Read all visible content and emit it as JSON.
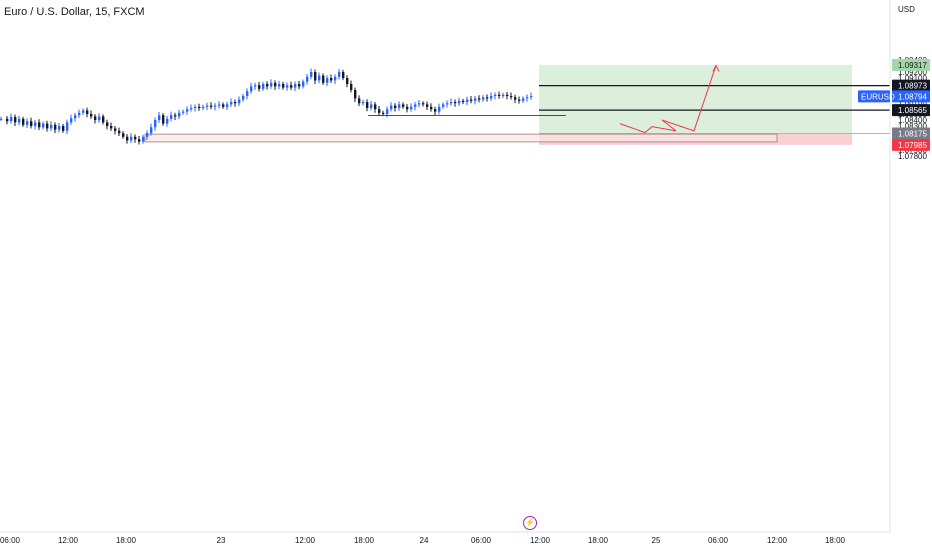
{
  "header": {
    "title": "Euro / U.S. Dollar, 15, FXCM",
    "currency": "USD"
  },
  "price_axis": {
    "ticks": [
      "1.09400",
      "1.09200",
      "1.09100",
      "1.09000",
      "1.08900",
      "1.08700",
      "1.08600",
      "1.08500",
      "1.08400",
      "1.08300",
      "1.08200",
      "1.08100",
      "1.07900",
      "1.07800"
    ],
    "tick_values": [
      1.094,
      1.092,
      1.091,
      1.09,
      1.089,
      1.087,
      1.086,
      1.085,
      1.084,
      1.083,
      1.082,
      1.081,
      1.079,
      1.078
    ]
  },
  "time_axis": {
    "labels": [
      "06:00",
      "12:00",
      "18:00",
      "23",
      "12:00",
      "18:00",
      "24",
      "06:00",
      "12:00",
      "18:00",
      "25",
      "06:00",
      "12:00",
      "18:00"
    ]
  },
  "price_tags": [
    {
      "text": "1.09317",
      "value": 1.09317,
      "bg": "#a5d6a7",
      "fg": "#131722"
    },
    {
      "text": "1.08973",
      "value": 1.08973,
      "bg": "#131722",
      "fg": "#ffffff"
    },
    {
      "text": "1.08794",
      "value": 1.08794,
      "bg": "#2962ff",
      "fg": "#ffffff",
      "symbol": "EURUSD"
    },
    {
      "text": "1.08565",
      "value": 1.08565,
      "bg": "#131722",
      "fg": "#ffffff"
    },
    {
      "text": "1.08175",
      "value": 1.08175,
      "bg": "#787b86",
      "fg": "#ffffff"
    },
    {
      "text": "1.07985",
      "value": 1.07985,
      "bg": "#f23645",
      "fg": "#ffffff"
    }
  ],
  "position": {
    "target": 1.09317,
    "entry": 1.08175,
    "stop": 1.07985,
    "profit_color": "#dcefdc",
    "loss_color": "#f9d0d2"
  },
  "demand_zone": {
    "top": 1.08165,
    "bottom": 1.08035,
    "color": "#fbe5e6"
  },
  "levels": [
    1.08973,
    1.08565
  ],
  "support_line_level": 1.08475,
  "colors": {
    "up": "#2962ff",
    "down": "#131722",
    "projection": "#f23645"
  },
  "chart_data": {
    "type": "candlestick",
    "title": "Euro / U.S. Dollar, 15, FXCM",
    "symbol": "EURUSD",
    "ylim": [
      1.0775,
      1.0955
    ],
    "last_price": 1.08794,
    "close_path": [
      [
        0,
        1.0842
      ],
      [
        6,
        1.0838
      ],
      [
        10,
        1.0845
      ],
      [
        14,
        1.0836
      ],
      [
        18,
        1.0842
      ],
      [
        22,
        1.0832
      ],
      [
        26,
        1.0838
      ],
      [
        30,
        1.083
      ],
      [
        34,
        1.0836
      ],
      [
        38,
        1.0828
      ],
      [
        42,
        1.0834
      ],
      [
        46,
        1.0826
      ],
      [
        50,
        1.0832
      ],
      [
        54,
        1.0824
      ],
      [
        58,
        1.083
      ],
      [
        62,
        1.0822
      ],
      [
        66,
        1.0836
      ],
      [
        70,
        1.0843
      ],
      [
        74,
        1.0848
      ],
      [
        78,
        1.0852
      ],
      [
        82,
        1.0856
      ],
      [
        86,
        1.085
      ],
      [
        90,
        1.0846
      ],
      [
        94,
        1.084
      ],
      [
        98,
        1.0846
      ],
      [
        102,
        1.0836
      ],
      [
        106,
        1.083
      ],
      [
        110,
        1.0826
      ],
      [
        114,
        1.0822
      ],
      [
        118,
        1.0818
      ],
      [
        122,
        1.0812
      ],
      [
        126,
        1.0806
      ],
      [
        130,
        1.0812
      ],
      [
        134,
        1.0808
      ],
      [
        138,
        1.0804
      ],
      [
        142,
        1.0812
      ],
      [
        146,
        1.0818
      ],
      [
        150,
        1.0828
      ],
      [
        154,
        1.084
      ],
      [
        158,
        1.0848
      ],
      [
        162,
        1.0834
      ],
      [
        166,
        1.0842
      ],
      [
        170,
        1.0848
      ],
      [
        174,
        1.0846
      ],
      [
        178,
        1.0852
      ],
      [
        182,
        1.0854
      ],
      [
        186,
        1.0858
      ],
      [
        190,
        1.086
      ],
      [
        194,
        1.0862
      ],
      [
        198,
        1.086
      ],
      [
        202,
        1.0862
      ],
      [
        206,
        1.0864
      ],
      [
        210,
        1.0862
      ],
      [
        214,
        1.0864
      ],
      [
        218,
        1.0866
      ],
      [
        222,
        1.0862
      ],
      [
        226,
        1.0866
      ],
      [
        230,
        1.087
      ],
      [
        234,
        1.0868
      ],
      [
        238,
        1.0874
      ],
      [
        242,
        1.088
      ],
      [
        246,
        1.0888
      ],
      [
        250,
        1.0896
      ],
      [
        254,
        1.0898
      ],
      [
        258,
        1.0892
      ],
      [
        262,
        1.09
      ],
      [
        266,
        1.0896
      ],
      [
        270,
        1.0902
      ],
      [
        274,
        1.0896
      ],
      [
        278,
        1.09
      ],
      [
        282,
        1.0894
      ],
      [
        286,
        1.0898
      ],
      [
        290,
        1.0894
      ],
      [
        294,
        1.09
      ],
      [
        298,
        1.0896
      ],
      [
        302,
        1.0904
      ],
      [
        306,
        1.0912
      ],
      [
        310,
        1.092
      ],
      [
        314,
        1.0906
      ],
      [
        318,
        1.0914
      ],
      [
        322,
        1.0902
      ],
      [
        326,
        1.091
      ],
      [
        330,
        1.0906
      ],
      [
        334,
        1.0912
      ],
      [
        338,
        1.092
      ],
      [
        342,
        1.091
      ],
      [
        346,
        1.09
      ],
      [
        350,
        1.089
      ],
      [
        354,
        1.0876
      ],
      [
        358,
        1.0868
      ],
      [
        362,
        1.087
      ],
      [
        366,
        1.086
      ],
      [
        370,
        1.0866
      ],
      [
        374,
        1.0858
      ],
      [
        378,
        1.0852
      ],
      [
        382,
        1.085
      ],
      [
        386,
        1.0858
      ],
      [
        390,
        1.0864
      ],
      [
        394,
        1.086
      ],
      [
        398,
        1.0866
      ],
      [
        402,
        1.0862
      ],
      [
        406,
        1.0858
      ],
      [
        410,
        1.0862
      ],
      [
        414,
        1.0866
      ],
      [
        418,
        1.0868
      ],
      [
        422,
        1.0866
      ],
      [
        426,
        1.0862
      ],
      [
        430,
        1.0858
      ],
      [
        434,
        1.0854
      ],
      [
        438,
        1.0862
      ],
      [
        442,
        1.0866
      ],
      [
        446,
        1.0868
      ],
      [
        450,
        1.087
      ],
      [
        454,
        1.0868
      ],
      [
        458,
        1.0872
      ],
      [
        462,
        1.087
      ],
      [
        466,
        1.0874
      ],
      [
        470,
        1.0872
      ],
      [
        474,
        1.0876
      ],
      [
        478,
        1.0874
      ],
      [
        482,
        1.0878
      ],
      [
        486,
        1.0876
      ],
      [
        490,
        1.088
      ],
      [
        494,
        1.0882
      ],
      [
        498,
        1.088
      ],
      [
        502,
        1.0882
      ],
      [
        506,
        1.088
      ],
      [
        510,
        1.0878
      ],
      [
        514,
        1.0874
      ],
      [
        518,
        1.0872
      ],
      [
        522,
        1.0876
      ],
      [
        526,
        1.0878
      ],
      [
        530,
        1.088
      ]
    ],
    "projection_path": [
      1.0834,
      1.0819,
      1.0829,
      1.0822,
      1.084,
      1.0822,
      1.0931
    ]
  }
}
